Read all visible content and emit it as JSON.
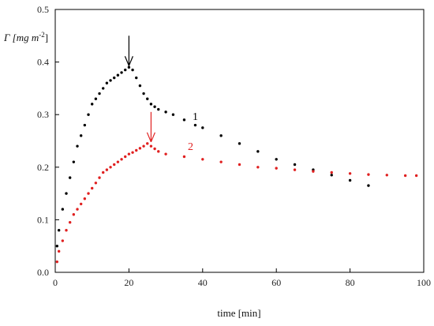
{
  "chart_data": {
    "type": "scatter",
    "xlabel": "time [min]",
    "ylabel_main": "Γ [mg m",
    "ylabel_sup": "-2",
    "ylabel_close": "]",
    "xlim": [
      0,
      100
    ],
    "ylim": [
      0,
      0.5
    ],
    "xticks": [
      "0",
      "20",
      "40",
      "60",
      "80",
      "100"
    ],
    "yticks": [
      "0.0",
      "0.1",
      "0.2",
      "0.3",
      "0.4",
      "0.5"
    ],
    "series": [
      {
        "label": "1",
        "color": "#000000",
        "points": [
          [
            0.5,
            0.05
          ],
          [
            1,
            0.08
          ],
          [
            2,
            0.12
          ],
          [
            3,
            0.15
          ],
          [
            4,
            0.18
          ],
          [
            5,
            0.21
          ],
          [
            6,
            0.24
          ],
          [
            7,
            0.26
          ],
          [
            8,
            0.28
          ],
          [
            9,
            0.3
          ],
          [
            10,
            0.32
          ],
          [
            11,
            0.33
          ],
          [
            12,
            0.34
          ],
          [
            13,
            0.35
          ],
          [
            14,
            0.36
          ],
          [
            15,
            0.365
          ],
          [
            16,
            0.37
          ],
          [
            17,
            0.375
          ],
          [
            18,
            0.38
          ],
          [
            19,
            0.385
          ],
          [
            20,
            0.39
          ],
          [
            21,
            0.385
          ],
          [
            22,
            0.37
          ],
          [
            23,
            0.355
          ],
          [
            24,
            0.34
          ],
          [
            25,
            0.33
          ],
          [
            26,
            0.32
          ],
          [
            27,
            0.315
          ],
          [
            28,
            0.31
          ],
          [
            30,
            0.305
          ],
          [
            32,
            0.3
          ],
          [
            35,
            0.29
          ],
          [
            38,
            0.28
          ],
          [
            40,
            0.275
          ],
          [
            45,
            0.26
          ],
          [
            50,
            0.245
          ],
          [
            55,
            0.23
          ],
          [
            60,
            0.215
          ],
          [
            65,
            0.205
          ],
          [
            70,
            0.195
          ],
          [
            75,
            0.185
          ],
          [
            80,
            0.175
          ],
          [
            85,
            0.165
          ]
        ]
      },
      {
        "label": "2",
        "color": "#e02020",
        "points": [
          [
            0.5,
            0.02
          ],
          [
            1,
            0.04
          ],
          [
            2,
            0.06
          ],
          [
            3,
            0.08
          ],
          [
            4,
            0.095
          ],
          [
            5,
            0.11
          ],
          [
            6,
            0.12
          ],
          [
            7,
            0.13
          ],
          [
            8,
            0.14
          ],
          [
            9,
            0.15
          ],
          [
            10,
            0.16
          ],
          [
            11,
            0.17
          ],
          [
            12,
            0.18
          ],
          [
            13,
            0.19
          ],
          [
            14,
            0.195
          ],
          [
            15,
            0.2
          ],
          [
            16,
            0.205
          ],
          [
            17,
            0.21
          ],
          [
            18,
            0.215
          ],
          [
            19,
            0.22
          ],
          [
            20,
            0.225
          ],
          [
            21,
            0.228
          ],
          [
            22,
            0.232
          ],
          [
            23,
            0.236
          ],
          [
            24,
            0.24
          ],
          [
            25,
            0.245
          ],
          [
            26,
            0.24
          ],
          [
            27,
            0.235
          ],
          [
            28,
            0.23
          ],
          [
            30,
            0.225
          ],
          [
            35,
            0.22
          ],
          [
            40,
            0.215
          ],
          [
            45,
            0.21
          ],
          [
            50,
            0.205
          ],
          [
            55,
            0.2
          ],
          [
            60,
            0.198
          ],
          [
            65,
            0.195
          ],
          [
            70,
            0.192
          ],
          [
            75,
            0.19
          ],
          [
            80,
            0.188
          ],
          [
            85,
            0.186
          ],
          [
            90,
            0.185
          ],
          [
            95,
            0.184
          ],
          [
            98,
            0.184
          ]
        ]
      }
    ],
    "arrows": [
      {
        "x": 20,
        "y": 0.39,
        "color": "#000000"
      },
      {
        "x": 26,
        "y": 0.245,
        "color": "#e02020"
      }
    ],
    "grid": false,
    "legend": "none"
  }
}
